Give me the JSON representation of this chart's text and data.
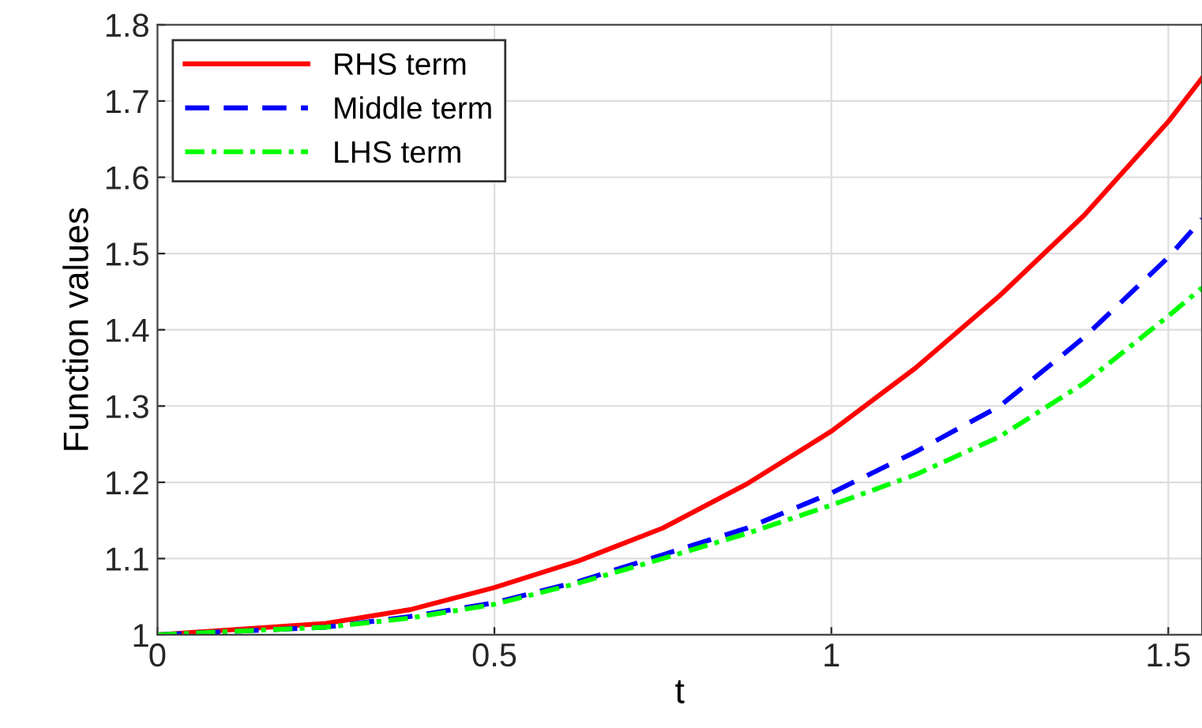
{
  "chart_data": {
    "type": "line",
    "xlabel": "t",
    "ylabel": "Function values",
    "x": [
      0,
      0.25,
      0.375,
      0.5,
      0.625,
      0.75,
      0.875,
      1,
      1.125,
      1.25,
      1.375,
      1.5,
      1.55
    ],
    "series": [
      {
        "name": "RHS term",
        "color": "#ff0000",
        "line_style": "solid",
        "values": [
          1,
          1.015,
          1.033,
          1.062,
          1.097,
          1.14,
          1.198,
          1.267,
          1.35,
          1.445,
          1.55,
          1.673,
          1.73
        ]
      },
      {
        "name": "Middle term",
        "color": "#0000ff",
        "line_style": "dashed",
        "values": [
          1,
          1.01,
          1.024,
          1.042,
          1.07,
          1.105,
          1.14,
          1.186,
          1.24,
          1.3,
          1.39,
          1.495,
          1.545
        ]
      },
      {
        "name": "LHS term",
        "color": "#00ff00",
        "line_style": "dashdot",
        "values": [
          1,
          1.01,
          1.022,
          1.04,
          1.068,
          1.1,
          1.133,
          1.17,
          1.21,
          1.26,
          1.33,
          1.418,
          1.455
        ]
      }
    ],
    "xlim": [
      0,
      1.55
    ],
    "ylim": [
      1,
      1.8
    ],
    "xticks": [
      0,
      0.5,
      1,
      1.5
    ],
    "yticks": [
      1,
      1.1,
      1.2,
      1.3,
      1.4,
      1.5,
      1.6,
      1.7,
      1.8
    ],
    "grid": true,
    "legend": "top left"
  }
}
